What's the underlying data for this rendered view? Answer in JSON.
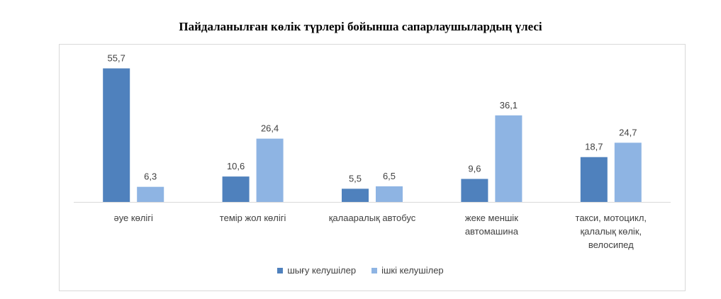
{
  "chart_data": {
    "type": "bar",
    "title": "Пайдаланылған көлік түрлері бойынша сапарлаушылардың үлесі",
    "categories": [
      [
        "әуе көлігі"
      ],
      [
        "темір жол көлігі"
      ],
      [
        "қалааралық автобус"
      ],
      [
        "жеке меншік",
        "автомашина"
      ],
      [
        "такси, мотоцикл,",
        "қалалық көлік,",
        "велосипед"
      ]
    ],
    "series": [
      {
        "name": "шығу келушілер",
        "values": [
          55.7,
          10.6,
          5.5,
          9.6,
          18.7
        ],
        "labels": [
          "55,7",
          "10,6",
          "5,5",
          "9,6",
          "18,7"
        ],
        "color": "#4f81bd"
      },
      {
        "name": "ішкі келушілер",
        "values": [
          6.3,
          26.4,
          6.5,
          36.1,
          24.7
        ],
        "labels": [
          "6,3",
          "26,4",
          "6,5",
          "36,1",
          "24,7"
        ],
        "color": "#8eb4e3"
      }
    ],
    "ylim": [
      0,
      60
    ],
    "grid": false,
    "legend_position": "bottom"
  }
}
